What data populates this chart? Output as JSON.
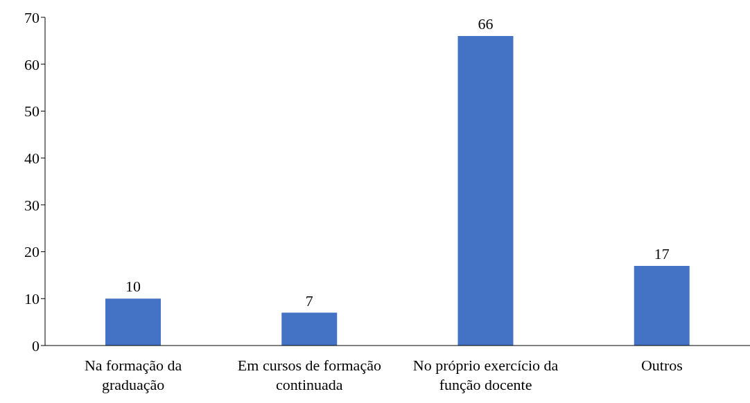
{
  "chart_data": {
    "type": "bar",
    "categories": [
      "Na formação da graduação",
      "Em cursos de formação continuada",
      "No próprio exercício da função docente",
      "Outros"
    ],
    "values": [
      10,
      7,
      66,
      17
    ],
    "color": "#4472c4",
    "ylim": [
      0,
      70
    ],
    "yticks": [
      0,
      10,
      20,
      30,
      40,
      50,
      60,
      70
    ],
    "data_labels": true,
    "grid": false
  }
}
